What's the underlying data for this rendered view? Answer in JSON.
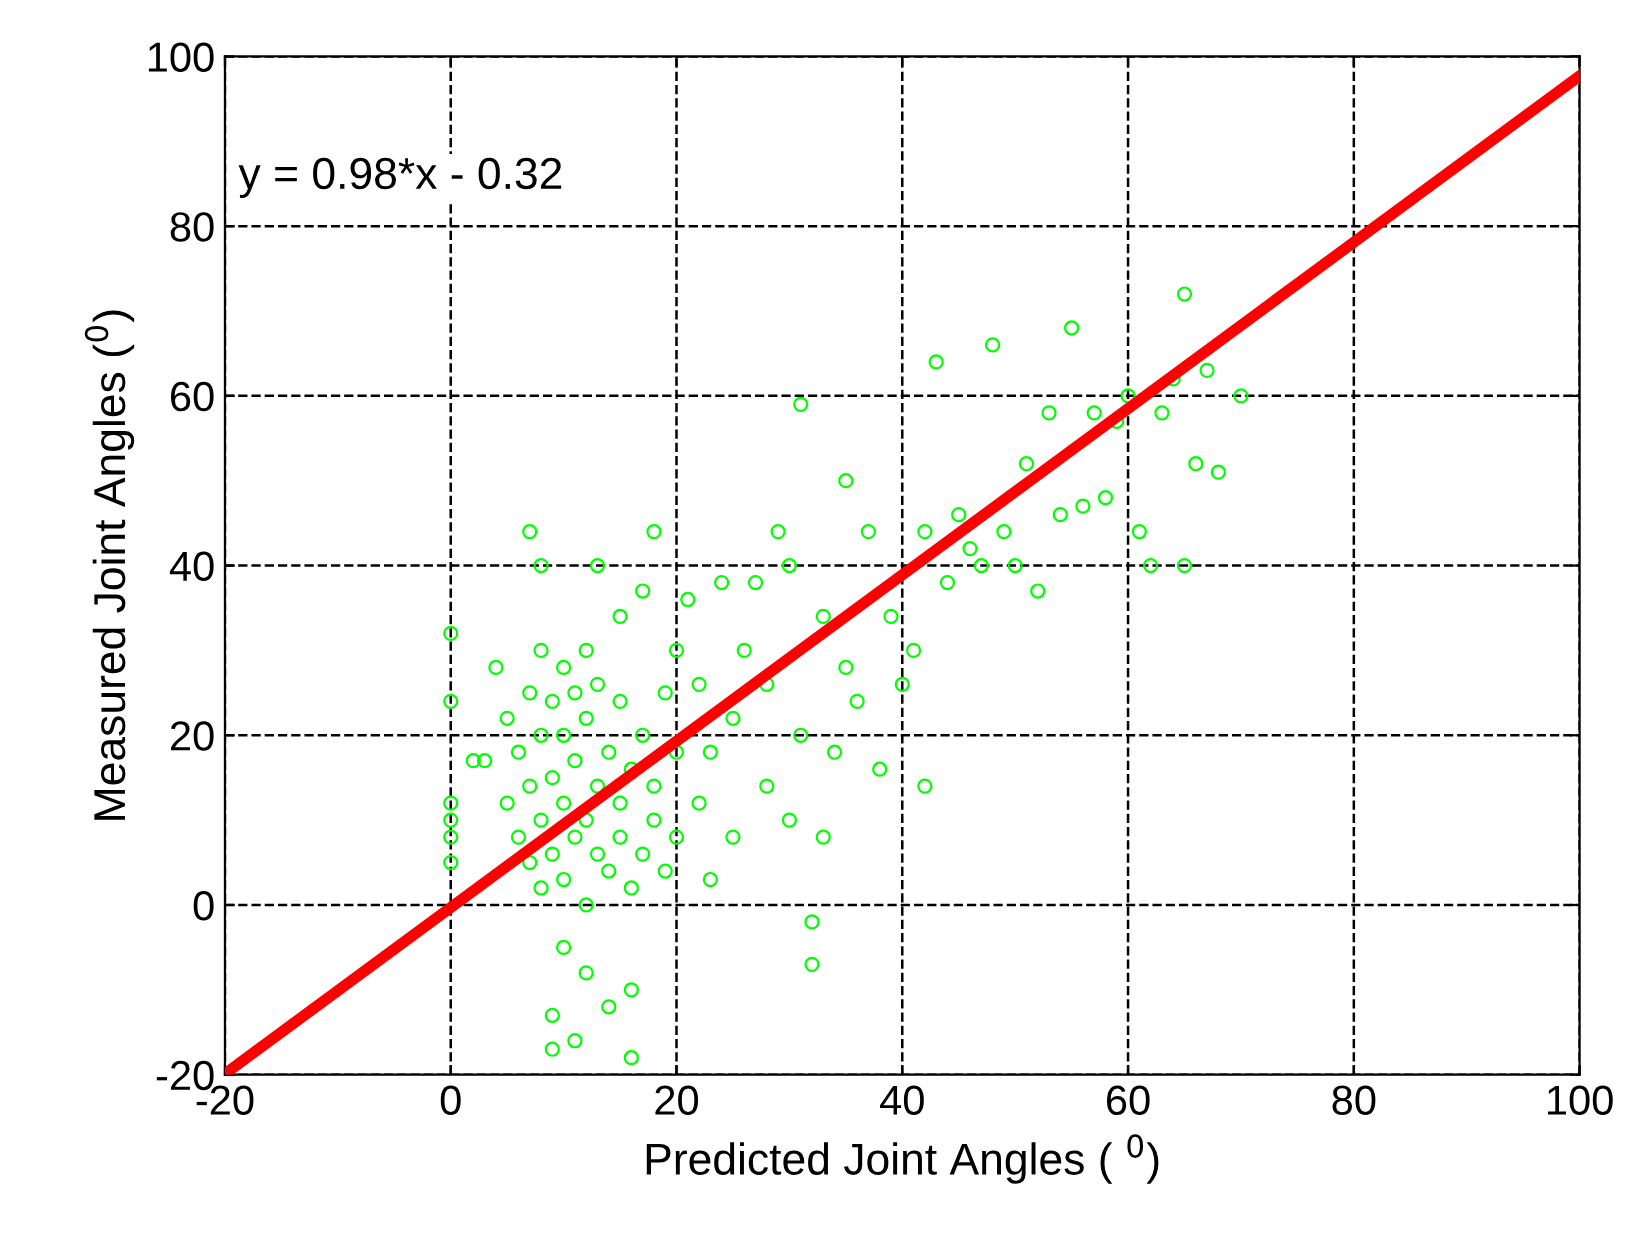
{
  "chart_data": {
    "type": "scatter",
    "xlabel": "Predicted Joint Angles ( $^{0}$)",
    "ylabel": "Measured Joint Angles ($^{0}$)",
    "annotations": [
      "y = 0.98*x - 0.32"
    ],
    "series": [
      {
        "color": "#00ff00",
        "marker": "circle",
        "x": [
          0,
          0,
          0,
          0,
          0,
          0,
          2,
          3,
          4,
          5,
          5,
          6,
          6,
          7,
          7,
          7,
          7,
          8,
          8,
          8,
          8,
          8,
          9,
          9,
          9,
          9,
          9,
          10,
          10,
          10,
          10,
          10,
          11,
          11,
          11,
          11,
          12,
          12,
          12,
          12,
          12,
          13,
          13,
          13,
          13,
          14,
          14,
          14,
          15,
          15,
          15,
          15,
          16,
          16,
          16,
          16,
          17,
          17,
          17,
          18,
          18,
          18,
          19,
          19,
          20,
          20,
          20,
          21,
          22,
          22,
          23,
          23,
          24,
          25,
          25,
          26,
          27,
          28,
          28,
          29,
          30,
          30,
          31,
          31,
          32,
          32,
          33,
          33,
          34,
          35,
          35,
          36,
          37,
          38,
          39,
          40,
          41,
          42,
          42,
          43,
          44,
          45,
          46,
          47,
          48,
          49,
          50,
          51,
          52,
          53,
          54,
          55,
          56,
          57,
          58,
          59,
          60,
          61,
          62,
          63,
          64,
          65,
          65,
          66,
          67,
          68,
          70
        ],
        "values": [
          5,
          8,
          10,
          12,
          24,
          32,
          17,
          17,
          28,
          22,
          12,
          8,
          18,
          5,
          14,
          25,
          44,
          2,
          10,
          20,
          30,
          40,
          6,
          15,
          24,
          -13,
          -17,
          3,
          12,
          20,
          28,
          -5,
          8,
          17,
          25,
          -16,
          0,
          10,
          22,
          30,
          -8,
          6,
          14,
          26,
          40,
          4,
          18,
          -12,
          8,
          12,
          24,
          34,
          2,
          16,
          -10,
          -18,
          6,
          20,
          37,
          10,
          14,
          44,
          4,
          25,
          8,
          18,
          30,
          36,
          12,
          26,
          3,
          18,
          38,
          8,
          22,
          30,
          38,
          14,
          26,
          44,
          10,
          40,
          59,
          20,
          -7,
          -2,
          8,
          34,
          18,
          50,
          28,
          24,
          44,
          16,
          34,
          26,
          30,
          14,
          44,
          64,
          38,
          46,
          42,
          40,
          66,
          44,
          40,
          52,
          37,
          58,
          46,
          68,
          47,
          58,
          48,
          57,
          60,
          44,
          40,
          58,
          62,
          72,
          40,
          52,
          63,
          51,
          60
        ]
      },
      {
        "type": "line",
        "color": "#ff0000",
        "x": [
          -20,
          100
        ],
        "values": [
          -19.9,
          97.7
        ]
      }
    ],
    "xlim": [
      -20,
      100
    ],
    "ylim": [
      -20,
      100
    ],
    "xticks": [
      -20,
      0,
      20,
      40,
      60,
      80,
      100
    ],
    "yticks": [
      -20,
      0,
      20,
      40,
      60,
      80,
      100
    ],
    "grid": true
  }
}
